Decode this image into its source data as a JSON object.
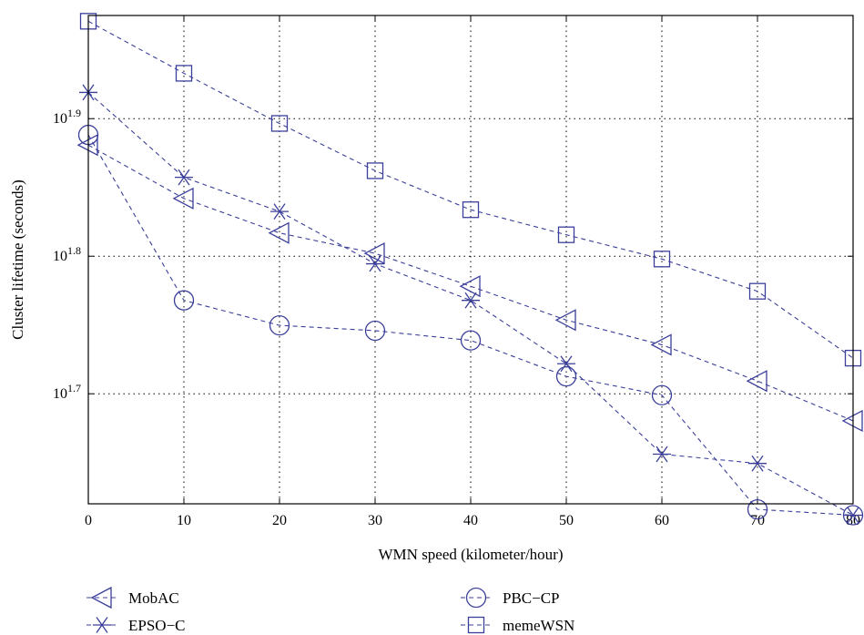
{
  "chart_data": {
    "type": "line",
    "xlabel": "WMN speed (kilometer/hour)",
    "ylabel": "Cluster lifetime (seconds)",
    "x": [
      0,
      10,
      20,
      30,
      40,
      50,
      60,
      70,
      80
    ],
    "xlim": [
      0,
      80
    ],
    "xticks": [
      "0",
      "10",
      "20",
      "30",
      "40",
      "50",
      "60",
      "70",
      "80"
    ],
    "ylim_log10": [
      1.62,
      1.975
    ],
    "yscale": "log",
    "yticks": [
      {
        "base": "10",
        "exp": "1.7",
        "log10": 1.7
      },
      {
        "base": "10",
        "exp": "1.8",
        "log10": 1.8
      },
      {
        "base": "10",
        "exp": "1.9",
        "log10": 1.9
      }
    ],
    "grid": true,
    "legend_position": "bottom",
    "line_color": "#3b3f9a",
    "series": [
      {
        "name": "MobAC",
        "marker": "triangle-left",
        "values": [
          76.0,
          69.5,
          65.6,
          63.4,
          60.0,
          56.7,
          54.4,
          51.2,
          47.9
        ]
      },
      {
        "name": "PBC−CP",
        "marker": "circle",
        "values": [
          77.3,
          58.6,
          56.2,
          55.7,
          54.8,
          51.6,
          50.0,
          41.3,
          40.9
        ]
      },
      {
        "name": "EPSO−C",
        "marker": "asterisk",
        "values": [
          83.0,
          72.0,
          68.0,
          62.3,
          58.6,
          52.7,
          45.3,
          44.6,
          40.9
        ]
      },
      {
        "name": "memeWSN",
        "marker": "square",
        "values": [
          93.5,
          85.7,
          78.8,
          72.8,
          68.2,
          65.4,
          62.8,
          59.5,
          53.2
        ]
      }
    ]
  }
}
